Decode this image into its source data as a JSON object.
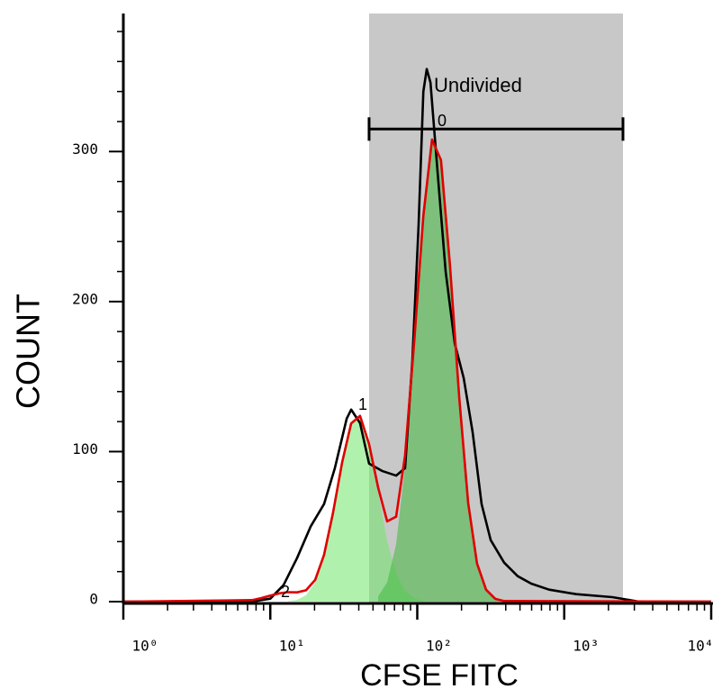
{
  "chart_data": {
    "type": "histogram-fit",
    "x_label": "CFSE FITC",
    "y_label": "COUNT",
    "xscale": "log",
    "xlim": [
      1,
      10000
    ],
    "ylim": [
      0,
      392
    ],
    "xticks": [
      {
        "value": 1,
        "label": "10⁰"
      },
      {
        "value": 10,
        "label": "10¹"
      },
      {
        "value": 100,
        "label": "10²"
      },
      {
        "value": 1000,
        "label": "10³"
      },
      {
        "value": 10000,
        "label": "10⁴"
      }
    ],
    "xminorticks": [
      2,
      3,
      4,
      5,
      6,
      7,
      8,
      9,
      20,
      30,
      40,
      50,
      60,
      70,
      80,
      90,
      200,
      300,
      400,
      500,
      600,
      700,
      800,
      900,
      2000,
      3000,
      4000,
      5000,
      6000,
      7000,
      8000,
      9000
    ],
    "yticks": [
      0,
      100,
      200,
      300
    ],
    "yminorticks": [
      20,
      40,
      60,
      80,
      120,
      140,
      160,
      180,
      220,
      240,
      260,
      280,
      320,
      340,
      360,
      380
    ],
    "gate": {
      "label": "Undivided",
      "range": [
        47,
        2510
      ],
      "y": 315,
      "color": "#c8c8c8"
    },
    "peak_labels": [
      "0",
      "1",
      "2"
    ],
    "series": [
      {
        "style": "area",
        "color": "#6fe86a",
        "x": [
          13.2,
          15.2,
          17.5,
          20.2,
          23.2,
          26.7,
          30.8,
          35.5,
          40.8,
          47.0,
          54.2,
          62.4,
          71.8,
          82.6,
          95.2,
          110
        ],
        "values": [
          0.3,
          1.2,
          4.3,
          12.8,
          30.4,
          58.9,
          92.7,
          118.8,
          123.8,
          105,
          72.4,
          40.6,
          18.5,
          6.9,
          2.1,
          0.5
        ]
      },
      {
        "style": "area",
        "color": "#3fb83c",
        "x": [
          54.2,
          62.4,
          71.8,
          82.6,
          95.2,
          110,
          126,
          145,
          167,
          193,
          222,
          255,
          294,
          339,
          390
        ],
        "values": [
          3.5,
          12.9,
          38.1,
          90.5,
          170.6,
          256.7,
          308,
          294.3,
          224,
          136.1,
          65.8,
          25.5,
          7.9,
          1.9,
          0.4
        ]
      },
      {
        "style": "line",
        "color": "#000000",
        "x": [
          1,
          7.5,
          10,
          12.3,
          15.2,
          18.8,
          23.2,
          27.5,
          33.1,
          35.5,
          40.8,
          47,
          58,
          71.8,
          82.6,
          92.5,
          102,
          110,
          116,
          123,
          136,
          156,
          180,
          207,
          238,
          274,
          316,
          390,
          482,
          596,
          789,
          1205,
          2120,
          3236,
          4290,
          10000
        ],
        "values": [
          0,
          0,
          2,
          11,
          29,
          50,
          65,
          89,
          122,
          128,
          119,
          92,
          87,
          84,
          89,
          160,
          250,
          340,
          355,
          346,
          292,
          220,
          172,
          149,
          113,
          65,
          41,
          26,
          17,
          12,
          8,
          5,
          3,
          0,
          0,
          0
        ]
      },
      {
        "style": "line",
        "color": "#e00000",
        "x": [
          1,
          7.5,
          8.66,
          9.96,
          11.5,
          13.2,
          15.2,
          17.5,
          20.2,
          23.2,
          26.7,
          30.8,
          35.5,
          40.8,
          47.0,
          54.2,
          62.4,
          71.8,
          82.6,
          95.2,
          110,
          126,
          145,
          167,
          193,
          222,
          255,
          294,
          339,
          390,
          10000
        ],
        "values": [
          0,
          1.0,
          2.3,
          4.0,
          5.5,
          6.3,
          6.2,
          7.6,
          14.5,
          31.1,
          59.1,
          92.7,
          118.8,
          123.8,
          105,
          75.9,
          53.5,
          56.6,
          97.4,
          172.7,
          257.2,
          308,
          294.3,
          224,
          136.1,
          65.8,
          25.5,
          7.9,
          1.9,
          0.4,
          0
        ]
      }
    ]
  }
}
